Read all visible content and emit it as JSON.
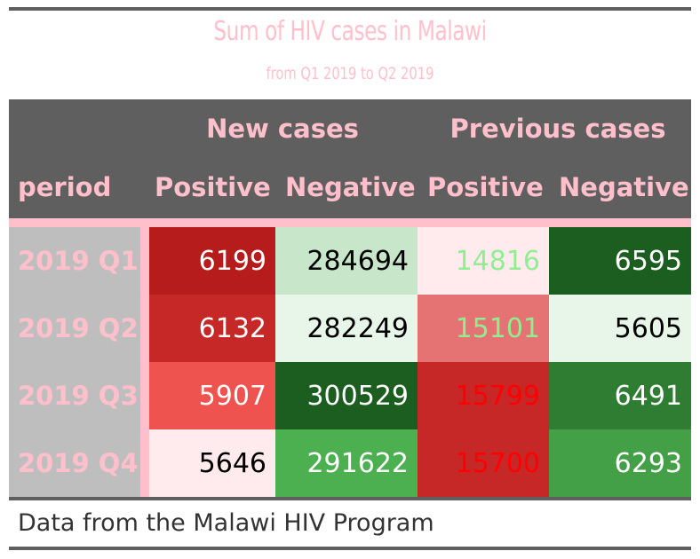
{
  "title": "Sum of HIV cases in Malawi",
  "subtitle": "from Q1 2019 to Q2 2019",
  "spanners": {
    "new": "New cases",
    "previous": "Previous cases"
  },
  "columns": {
    "period": "period",
    "new_pos": "Positive",
    "new_neg": "Negative",
    "prev_pos": "Positive",
    "prev_neg": "Negative"
  },
  "rows": [
    {
      "period": "2019 Q1",
      "new_pos": "6199",
      "new_neg": "284694",
      "prev_pos": "14816",
      "prev_neg": "6595"
    },
    {
      "period": "2019 Q2",
      "new_pos": "6132",
      "new_neg": "282249",
      "prev_pos": "15101",
      "prev_neg": "5605"
    },
    {
      "period": "2019 Q3",
      "new_pos": "5907",
      "new_neg": "300529",
      "prev_pos": "15799",
      "prev_neg": "6491"
    },
    {
      "period": "2019 Q4",
      "new_pos": "5646",
      "new_neg": "291622",
      "prev_pos": "15700",
      "prev_neg": "6293"
    }
  ],
  "cell_colors": {
    "new_pos": [
      {
        "bg": "#b71c1c",
        "fg": "#ffffff"
      },
      {
        "bg": "#c62828",
        "fg": "#ffffff"
      },
      {
        "bg": "#ef5350",
        "fg": "#ffffff"
      },
      {
        "bg": "#ffebee",
        "fg": "#000000"
      }
    ],
    "new_neg": [
      {
        "bg": "#c8e6c9",
        "fg": "#000000"
      },
      {
        "bg": "#e8f5e9",
        "fg": "#000000"
      },
      {
        "bg": "#1b5e20",
        "fg": "#ffffff"
      },
      {
        "bg": "#4caf50",
        "fg": "#ffffff"
      }
    ],
    "prev_pos": [
      {
        "bg": "#ffebee",
        "fg": "#90ee90"
      },
      {
        "bg": "#e57373",
        "fg": "#90ee90"
      },
      {
        "bg": "#c62828",
        "fg": "#ff0000"
      },
      {
        "bg": "#c62828",
        "fg": "#ff0000"
      }
    ],
    "prev_neg": [
      {
        "bg": "#1b5e20",
        "fg": "#ffffff"
      },
      {
        "bg": "#e8f5e9",
        "fg": "#000000"
      },
      {
        "bg": "#2e7d32",
        "fg": "#ffffff"
      },
      {
        "bg": "#43a047",
        "fg": "#ffffff"
      }
    ]
  },
  "footer": "Data from the Malawi HIV Program"
}
